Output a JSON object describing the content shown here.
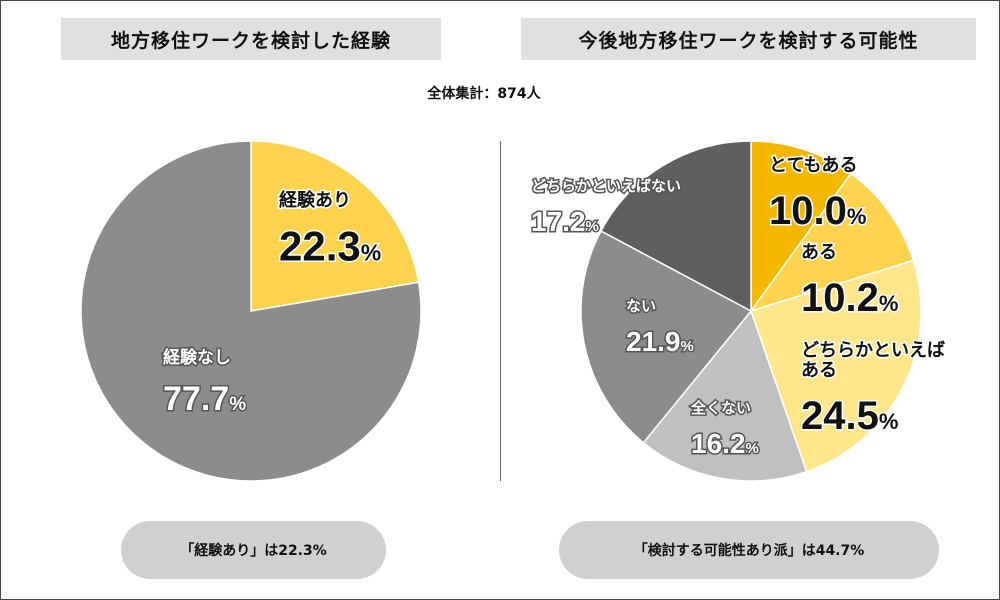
{
  "total_label": "全体集計：874人",
  "summaries": {
    "left": "「経験あり」は22.3%",
    "right": "「検討する可能性あり派」は44.7%"
  },
  "colors": {
    "dark_yellow": "#f5b800",
    "mid_yellow": "#ffd34d",
    "light_yellow": "#ffe68a",
    "light_gray": "#c0c0c0",
    "gray": "#8c8c8c",
    "dark_gray": "#5f5f5f",
    "pill": "#d0d0d0",
    "title_bar": "#e0e0e0"
  },
  "chart_data": [
    {
      "type": "pie",
      "title": "地方移住ワークを検討した経験",
      "slices": [
        {
          "label": "経験あり",
          "value": 22.3,
          "value_text": "22.3",
          "color": "#ffd34d"
        },
        {
          "label": "経験なし",
          "value": 77.7,
          "value_text": "77.7",
          "color": "#8c8c8c"
        }
      ]
    },
    {
      "type": "pie",
      "title": "今後地方移住ワークを検討する可能性",
      "slices": [
        {
          "label": "とてもある",
          "value": 10.0,
          "value_text": "10.0",
          "color": "#f5b800"
        },
        {
          "label": "ある",
          "value": 10.2,
          "value_text": "10.2",
          "color": "#ffd34d"
        },
        {
          "label": "どちらかといえば\nある",
          "value": 24.5,
          "value_text": "24.5",
          "color": "#ffe68a"
        },
        {
          "label": "全くない",
          "value": 16.2,
          "value_text": "16.2",
          "color": "#c0c0c0"
        },
        {
          "label": "ない",
          "value": 21.9,
          "value_text": "21.9",
          "color": "#8c8c8c"
        },
        {
          "label": "どちらかといえばない",
          "value": 17.2,
          "value_text": "17.2",
          "color": "#5f5f5f"
        }
      ]
    }
  ]
}
